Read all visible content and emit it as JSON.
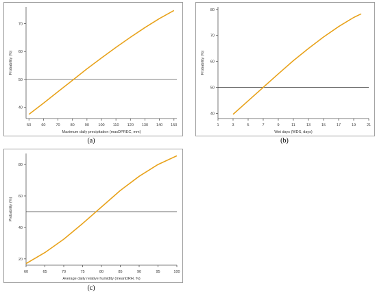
{
  "colors": {
    "curve": "#e8a21a",
    "reference": "#333333",
    "frame": "#888888"
  },
  "chart_data": [
    {
      "type": "line",
      "panel_label": "(a)",
      "xlabel": "Maximum daily precipitation (maxDPREC, mm)",
      "ylabel": "Probability (%)",
      "xlim": [
        48,
        152
      ],
      "ylim": [
        36,
        76
      ],
      "xticks": [
        50,
        60,
        70,
        80,
        90,
        100,
        110,
        120,
        130,
        140,
        150
      ],
      "yticks": [
        40,
        50,
        60,
        70
      ],
      "reference_y": 50,
      "series": [
        {
          "x": [
            50,
            60,
            70,
            80,
            90,
            100,
            110,
            120,
            130,
            140,
            150
          ],
          "y": [
            37.5,
            41.5,
            45.6,
            49.7,
            53.8,
            57.7,
            61.5,
            65.1,
            68.6,
            71.8,
            74.7
          ]
        }
      ]
    },
    {
      "type": "line",
      "panel_label": "(b)",
      "xlabel": "Wet days (WDS, days)",
      "ylabel": "Probability (%)",
      "xlim": [
        1,
        21
      ],
      "ylim": [
        38,
        81
      ],
      "xticks": [
        1,
        3,
        5,
        7,
        9,
        11,
        13,
        15,
        17,
        19,
        21
      ],
      "yticks": [
        40,
        50,
        60,
        70,
        80
      ],
      "reference_y": 50,
      "series": [
        {
          "x": [
            3,
            5,
            7,
            9,
            11,
            13,
            15,
            17,
            19,
            20
          ],
          "y": [
            39.6,
            44.8,
            50.0,
            55.2,
            60.3,
            65.0,
            69.4,
            73.4,
            76.9,
            78.3
          ]
        }
      ]
    },
    {
      "type": "line",
      "panel_label": "(c)",
      "xlabel": "Average daily relative humidity (meanDRH, %)",
      "ylabel": "Probability (%)",
      "xlim": [
        60,
        100
      ],
      "ylim": [
        16,
        87
      ],
      "xticks": [
        60,
        65,
        70,
        75,
        80,
        85,
        90,
        95,
        100
      ],
      "yticks": [
        20,
        40,
        60,
        80
      ],
      "reference_y": 50,
      "series": [
        {
          "x": [
            60,
            65,
            70,
            75,
            80,
            85,
            90,
            95,
            100
          ],
          "y": [
            17.0,
            24.0,
            32.5,
            42.5,
            53.0,
            63.5,
            72.5,
            80.0,
            85.5
          ]
        }
      ]
    }
  ]
}
